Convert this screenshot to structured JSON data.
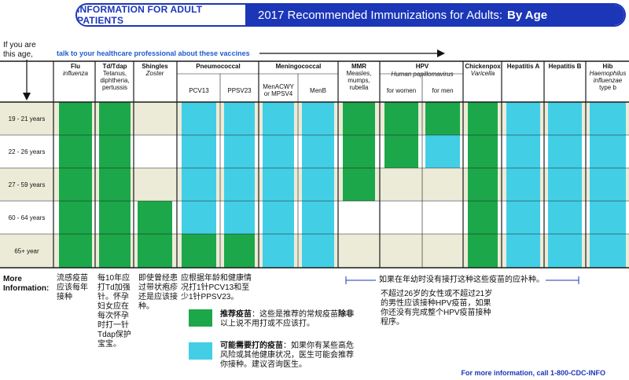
{
  "header": {
    "left": "INFORMATION FOR ADULT PATIENTS",
    "title": "2017 Recommended Immunizations for Adults:",
    "title_bold": "By Age"
  },
  "intro": {
    "if_age_1": "If you are",
    "if_age_2": "this age,",
    "talk": "talk to your healthcare professional about these vaccines"
  },
  "colors": {
    "recommended": "#1ca84a",
    "risk": "#42cfe6",
    "bg_stripe": "#ecebd8",
    "grid": "#1a1a1a",
    "blue": "#1c36b8"
  },
  "chart_data": {
    "type": "table",
    "age_groups": [
      "19 - 21 years",
      "22 - 26 years",
      "27 - 59 years",
      "60 - 64 years",
      "65+ year"
    ],
    "vaccines": [
      {
        "name": "Flu",
        "sub": "influenza",
        "cells": [
          "rec",
          "rec",
          "rec",
          "rec",
          "rec"
        ]
      },
      {
        "name": "Td/Tdap",
        "sub": "Tetanus, diphtheria, pertussis",
        "cells": [
          "rec",
          "rec",
          "rec",
          "rec",
          "rec"
        ]
      },
      {
        "name": "Shingles",
        "sub": "Zoster",
        "cells": [
          "none",
          "none",
          "none",
          "rec",
          "rec"
        ]
      },
      {
        "name": "Pneumococcal",
        "subcols": [
          {
            "name": "PCV13",
            "cells": [
              "risk",
              "risk",
              "risk",
              "risk",
              "rec"
            ]
          },
          {
            "name": "PPSV23",
            "cells": [
              "risk",
              "risk",
              "risk",
              "risk",
              "rec"
            ]
          }
        ]
      },
      {
        "name": "Meningococcal",
        "subcols": [
          {
            "name": "MenACWY or MPSV4",
            "cells": [
              "risk",
              "risk",
              "risk",
              "risk",
              "risk"
            ]
          },
          {
            "name": "MenB",
            "cells": [
              "risk",
              "risk",
              "risk",
              "risk",
              "risk"
            ]
          }
        ]
      },
      {
        "name": "MMR",
        "sub": "Measles, mumps, rubella",
        "cells": [
          "rec",
          "rec",
          "rec",
          "none",
          "none"
        ]
      },
      {
        "name": "HPV",
        "sub": "Human papillomavirus",
        "subcols": [
          {
            "name": "for women",
            "cells": [
              "rec",
              "rec",
              "none",
              "none",
              "none"
            ]
          },
          {
            "name": "for men",
            "cells": [
              "rec",
              "risk",
              "none",
              "none",
              "none"
            ]
          }
        ]
      },
      {
        "name": "Chickenpox",
        "sub": "Varicella",
        "cells": [
          "rec",
          "rec",
          "rec",
          "rec",
          "rec"
        ]
      },
      {
        "name": "Hepatitis A",
        "cells": [
          "risk",
          "risk",
          "risk",
          "risk",
          "risk"
        ]
      },
      {
        "name": "Hepatitis B",
        "cells": [
          "risk",
          "risk",
          "risk",
          "risk",
          "risk"
        ]
      },
      {
        "name": "Hib",
        "sub": "Haemophilus influenzae type b",
        "cells": [
          "risk",
          "risk",
          "risk",
          "risk",
          "risk"
        ]
      }
    ]
  },
  "more": {
    "label_1": "More",
    "label_2": "Information:",
    "flu": "流感疫苗应该每年接种",
    "td": "每10年应打Td加强针。怀孕妇女应在每次怀孕时打一针Tdap保护宝宝。",
    "shingles": "即使曾经患过带状疱疹还是应该接种。",
    "pneumo": "应根据年龄和健康情况打1针PCV13和至少1针PPSV23。",
    "range": "如果在年幼时没有接打这种这些疫苗的应补种。",
    "hpv": "不超过26岁的女性或不超过21岁的男性应该接种HPV疫苗，如果你还没有完成整个HPV疫苗接种程序。"
  },
  "legend": {
    "rec_bold": "推荐疫苗",
    "rec_text": "：这些是推荐的常规疫苗",
    "rec_bold2": "除非",
    "rec_text2": "以上说不用打或不应该打。",
    "risk_bold": "可能需要打的疫苗",
    "risk_text": "：如果你有某些高危风险或其他健康状况，医生可能会推荐你接种。建议咨询医生。"
  },
  "footer": "For more information, call 1-800-CDC-INFO"
}
